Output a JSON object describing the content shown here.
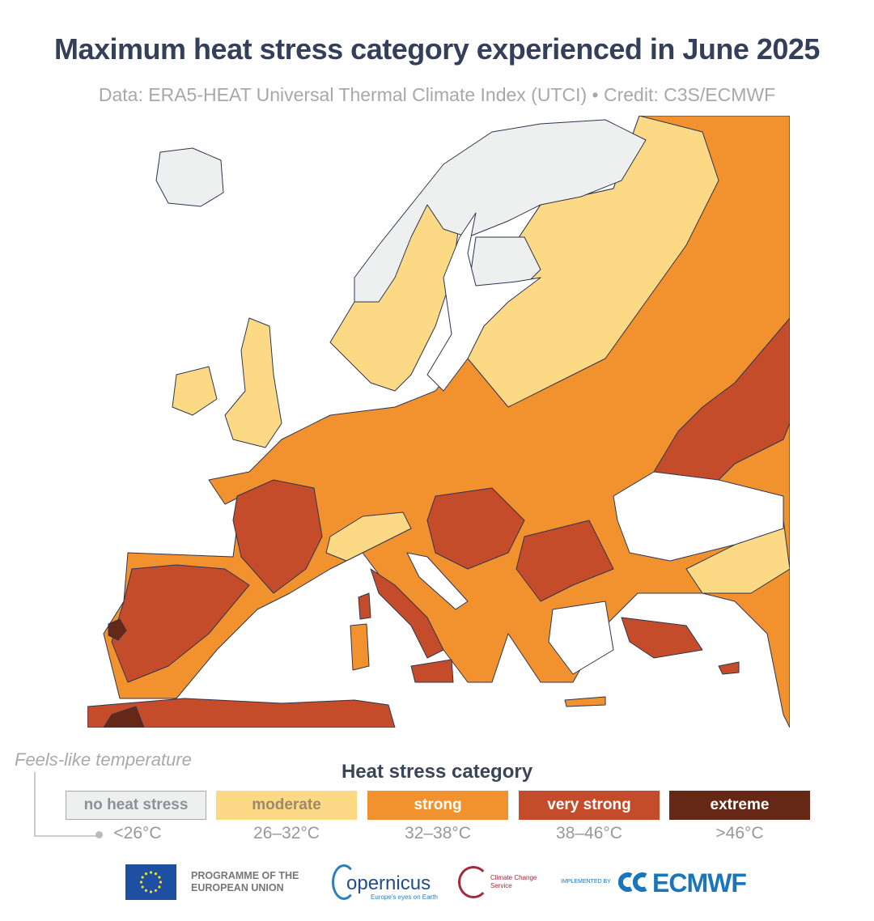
{
  "title": "Maximum heat stress category experienced in June 2025",
  "subtitle": "Data: ERA5-HEAT Universal Thermal Climate Index (UTCI) • Credit: C3S/ECMWF",
  "legend": {
    "axis_label": "Feels-like temperature",
    "title": "Heat stress category",
    "categories": [
      {
        "label": "no heat stress",
        "range": "<26°C",
        "color": "#eef0f0",
        "text_color": "#8a929c"
      },
      {
        "label": "moderate",
        "range": "26–32°C",
        "color": "#fbd985",
        "text_color": "#9a8a6a"
      },
      {
        "label": "strong",
        "range": "32–38°C",
        "color": "#f2922f",
        "text_color": "#ffffff"
      },
      {
        "label": "very strong",
        "range": "38–46°C",
        "color": "#c54c2a",
        "text_color": "#ffffff"
      },
      {
        "label": "extreme",
        "range": ">46°C",
        "color": "#652816",
        "text_color": "#ffffff"
      }
    ]
  },
  "logos": {
    "eu": "PROGRAMME OF THE EUROPEAN UNION",
    "copernicus": "opernicus",
    "copernicus_tagline": "Europe's eyes on Earth",
    "c3s": "Climate Change Service",
    "implemented_by": "IMPLEMENTED BY",
    "ecmwf": "ECMWF"
  }
}
